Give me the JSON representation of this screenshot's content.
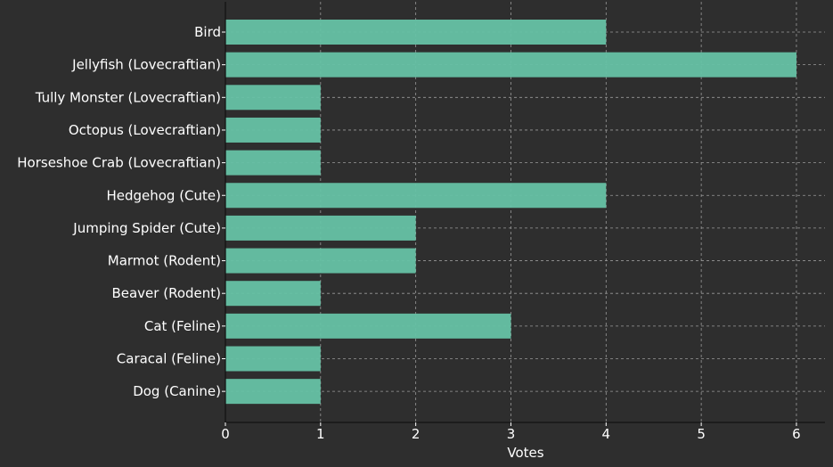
{
  "chart_data": {
    "type": "bar",
    "orientation": "horizontal",
    "categories": [
      "Bird",
      "Jellyfish (Lovecraftian)",
      "Tully Monster (Lovecraftian)",
      "Octopus (Lovecraftian)",
      "Horseshoe Crab (Lovecraftian)",
      "Hedgehog (Cute)",
      "Jumping Spider (Cute)",
      "Marmot (Rodent)",
      "Beaver (Rodent)",
      "Cat (Feline)",
      "Caracal (Feline)",
      "Dog (Canine)"
    ],
    "values": [
      4,
      6,
      1,
      1,
      1,
      4,
      2,
      2,
      1,
      3,
      1,
      1
    ],
    "title": "",
    "xlabel": "Votes",
    "ylabel": "",
    "xlim": [
      0,
      6.3
    ],
    "xticks": [
      0,
      1,
      2,
      3,
      4,
      5,
      6
    ],
    "grid": true,
    "colors": {
      "background": "#2e2e2e",
      "bar": "#66c2a5",
      "grid": "#9a9a9a",
      "axis": "#111111",
      "text": "#ffffff"
    }
  }
}
